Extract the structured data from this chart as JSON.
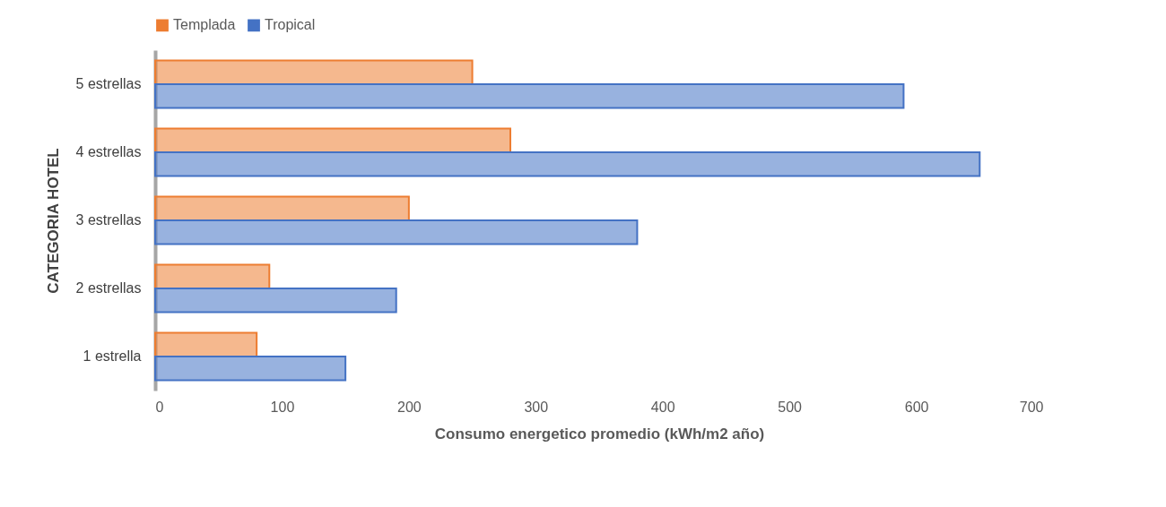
{
  "chart_data": {
    "type": "bar",
    "orientation": "horizontal",
    "categories": [
      "5 estrellas",
      "4 estrellas",
      "3 estrellas",
      "2 estrellas",
      "1 estrella"
    ],
    "series": [
      {
        "name": "Templada",
        "color": "#ed7d31",
        "values": [
          250,
          280,
          200,
          90,
          80
        ]
      },
      {
        "name": "Tropical",
        "color": "#4472c4",
        "values": [
          590,
          650,
          380,
          190,
          150
        ]
      }
    ],
    "xlabel": "Consumo energetico promedio (kWh/m2 año)",
    "ylabel": "CATEGORIA HOTEL",
    "xlim": [
      0,
      700
    ],
    "xticks": [
      0,
      100,
      200,
      300,
      400,
      500,
      600,
      700
    ],
    "grid": false,
    "legend": "top"
  }
}
